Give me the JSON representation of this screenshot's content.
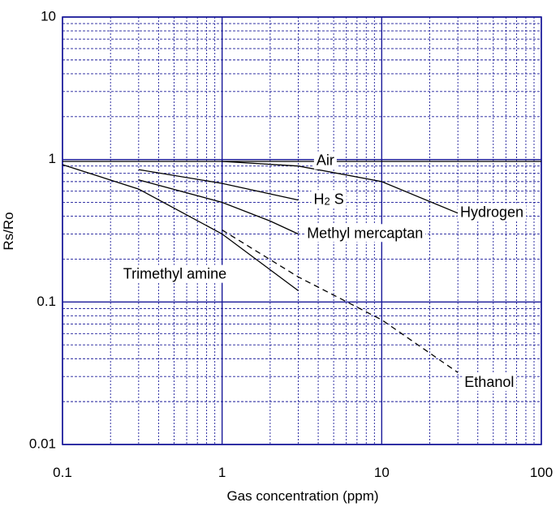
{
  "chart_data": {
    "type": "line",
    "xlabel": "Gas concentration (ppm)",
    "ylabel": "Rs/Ro",
    "x_scale": "log",
    "y_scale": "log",
    "xlim": [
      0.1,
      100
    ],
    "ylim": [
      0.01,
      10
    ],
    "x_ticks": [
      {
        "value": 0.1,
        "label": "0.1"
      },
      {
        "value": 1,
        "label": "1"
      },
      {
        "value": 10,
        "label": "10"
      },
      {
        "value": 100,
        "label": "100"
      }
    ],
    "y_ticks": [
      {
        "value": 10,
        "label": "10"
      },
      {
        "value": 1,
        "label": "1"
      },
      {
        "value": 0.1,
        "label": "0.1"
      },
      {
        "value": 0.01,
        "label": "0.01"
      }
    ],
    "grid": true,
    "colors": {
      "grid_major": "#1a1a99",
      "grid_minor": "#1a1a99",
      "series": "#000000"
    },
    "series": [
      {
        "name": "Air",
        "style": "solid",
        "label_at": {
          "x": 3.9,
          "y": 0.97
        },
        "x": [
          0.1,
          100
        ],
        "y": [
          0.97,
          0.97
        ]
      },
      {
        "name": "Hydrogen",
        "style": "solid",
        "label_at": {
          "x": 31,
          "y": 0.42
        },
        "x": [
          1,
          3,
          10,
          30
        ],
        "y": [
          0.97,
          0.9,
          0.7,
          0.42
        ]
      },
      {
        "name": "H2S",
        "name_main": "H",
        "name_sub": "2",
        "name_end": " S",
        "style": "solid",
        "label_at": {
          "x": 3.75,
          "y": 0.52
        },
        "x": [
          0.3,
          1,
          3
        ],
        "y": [
          0.85,
          0.68,
          0.52
        ]
      },
      {
        "name": "Methyl mercaptan",
        "style": "solid",
        "label_at": {
          "x": 3.4,
          "y": 0.3
        },
        "x": [
          0.3,
          1,
          2,
          3
        ],
        "y": [
          0.72,
          0.5,
          0.37,
          0.3
        ]
      },
      {
        "name": "Trimethyl amine",
        "style": "solid",
        "label_at": {
          "x": 0.24,
          "y": 0.155
        },
        "x": [
          0.1,
          0.3,
          1,
          3
        ],
        "y": [
          0.92,
          0.62,
          0.3,
          0.12
        ]
      },
      {
        "name": "Ethanol",
        "style": "dashed",
        "label_at": {
          "x": 33,
          "y": 0.027
        },
        "x": [
          1,
          3,
          10,
          30
        ],
        "y": [
          0.32,
          0.15,
          0.075,
          0.032
        ]
      }
    ]
  }
}
